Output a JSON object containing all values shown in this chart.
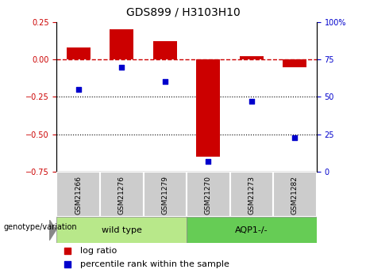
{
  "title": "GDS899 / H3103H10",
  "categories": [
    "GSM21266",
    "GSM21276",
    "GSM21279",
    "GSM21270",
    "GSM21273",
    "GSM21282"
  ],
  "log_ratio": [
    0.08,
    0.2,
    0.12,
    -0.65,
    0.02,
    -0.05
  ],
  "percentile_rank": [
    55,
    70,
    60,
    7,
    47,
    23
  ],
  "ylim_left": [
    -0.75,
    0.25
  ],
  "ylim_right": [
    0,
    100
  ],
  "left_yticks": [
    -0.75,
    -0.5,
    -0.25,
    0.0,
    0.25
  ],
  "right_yticks": [
    0,
    25,
    50,
    75,
    100
  ],
  "bar_color": "#CC0000",
  "dot_color": "#0000CC",
  "hline_y": 0.0,
  "dotted_lines": [
    -0.25,
    -0.5
  ],
  "n_wild": 3,
  "n_aqp1": 3,
  "wild_type_label": "wild type",
  "aqp1_label": "AQP1-/-",
  "genotype_label": "genotype/variation",
  "legend_log_ratio": "log ratio",
  "legend_percentile": "percentile rank within the sample",
  "bar_width": 0.55,
  "group_bg_wild": "#b8e88a",
  "group_bg_aqp1": "#66cc55",
  "sample_bg": "#cccccc",
  "title_fontsize": 10,
  "tick_fontsize": 7,
  "legend_fontsize": 8
}
